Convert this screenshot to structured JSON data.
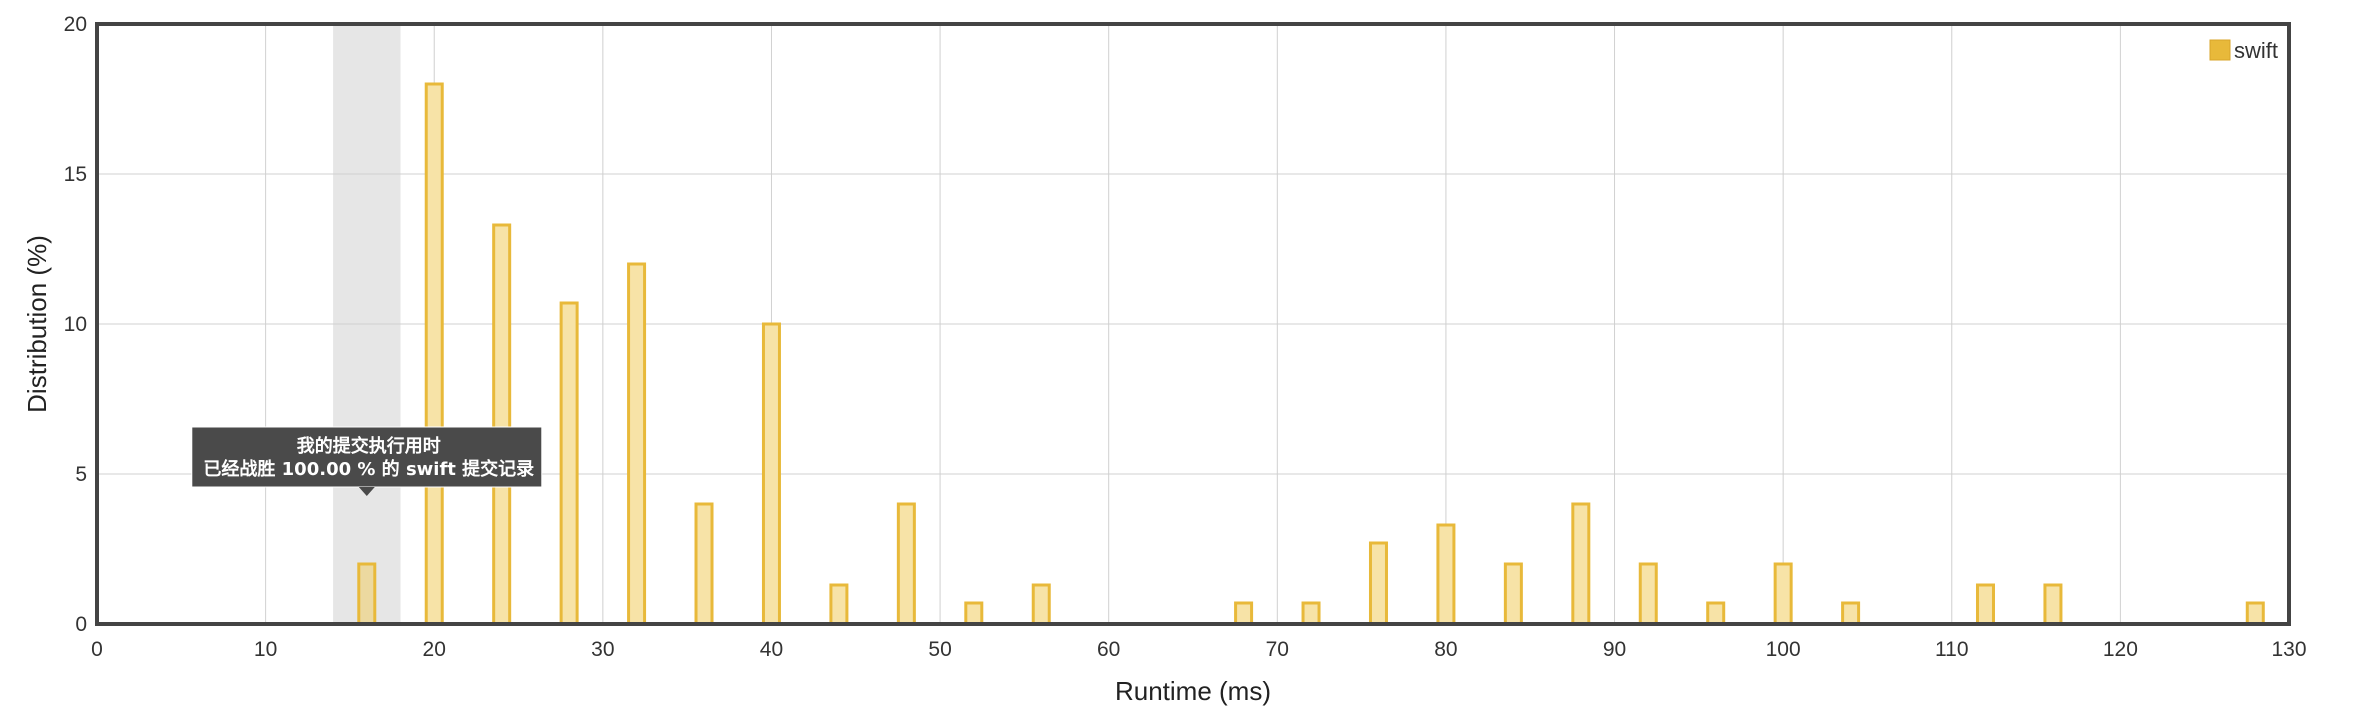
{
  "chart_data": {
    "type": "bar",
    "xlabel": "Runtime (ms)",
    "ylabel": "Distribution (%)",
    "xlim": [
      0,
      130
    ],
    "ylim": [
      0,
      20
    ],
    "x_ticks": [
      0,
      10,
      20,
      30,
      40,
      50,
      60,
      70,
      80,
      90,
      100,
      110,
      120,
      130
    ],
    "y_ticks": [
      0,
      5,
      10,
      15,
      20
    ],
    "grid": true,
    "legend": {
      "placement": "top-right",
      "entries": [
        "swift"
      ]
    },
    "series": [
      {
        "name": "swift",
        "color": "#e8b93a",
        "fill": "#f7e3a7",
        "points": [
          {
            "x": 16,
            "y": 2.0
          },
          {
            "x": 20,
            "y": 18.0
          },
          {
            "x": 24,
            "y": 13.3
          },
          {
            "x": 28,
            "y": 10.7
          },
          {
            "x": 32,
            "y": 12.0
          },
          {
            "x": 36,
            "y": 4.0
          },
          {
            "x": 40,
            "y": 10.0
          },
          {
            "x": 44,
            "y": 1.3
          },
          {
            "x": 48,
            "y": 4.0
          },
          {
            "x": 52,
            "y": 0.7
          },
          {
            "x": 56,
            "y": 1.3
          },
          {
            "x": 68,
            "y": 0.7
          },
          {
            "x": 72,
            "y": 0.7
          },
          {
            "x": 76,
            "y": 2.7
          },
          {
            "x": 80,
            "y": 3.3
          },
          {
            "x": 84,
            "y": 2.0
          },
          {
            "x": 88,
            "y": 4.0
          },
          {
            "x": 92,
            "y": 2.0
          },
          {
            "x": 96,
            "y": 0.7
          },
          {
            "x": 100,
            "y": 2.0
          },
          {
            "x": 104,
            "y": 0.7
          },
          {
            "x": 112,
            "y": 1.3
          },
          {
            "x": 116,
            "y": 1.3
          },
          {
            "x": 128,
            "y": 0.7
          }
        ]
      }
    ],
    "highlight": {
      "x_range": [
        14,
        18
      ],
      "bar_x": 16,
      "color": "#e6e6e6"
    },
    "tooltip": {
      "anchor_x": 16,
      "anchor_y": 5.2,
      "line1": "我的提交执行用时",
      "line2": "已经战胜 100.00 % 的 swift 提交记录"
    }
  }
}
